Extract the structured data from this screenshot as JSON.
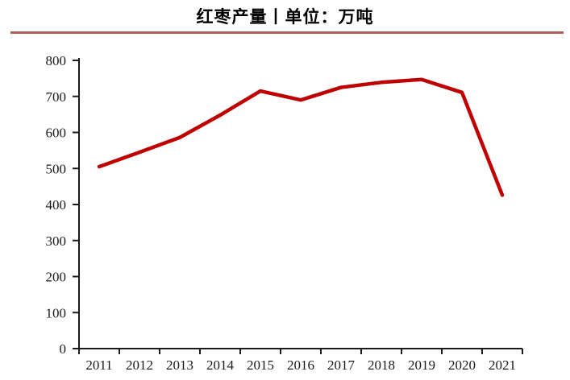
{
  "page": {
    "background": "#ffffff"
  },
  "header": {
    "title": "红枣产量丨单位：万吨",
    "separator_color": "#b25b5b"
  },
  "chart_data": {
    "type": "line",
    "title": "红枣产量丨单位：万吨",
    "unit": "万吨",
    "categories": [
      "2011",
      "2012",
      "2013",
      "2014",
      "2015",
      "2016",
      "2017",
      "2018",
      "2019",
      "2020",
      "2021"
    ],
    "series": [
      {
        "name": "红枣产量",
        "color": "#c00000",
        "values": [
          505,
          545,
          586,
          648,
          715,
          690,
          725,
          739,
          747,
          711,
          426
        ]
      }
    ],
    "xlabel": "",
    "ylabel": "",
    "ylim": [
      0,
      800
    ],
    "yticks": [
      0,
      100,
      200,
      300,
      400,
      500,
      600,
      700,
      800
    ],
    "grid": false,
    "legend_position": "none",
    "axis_color": "#1a1a1a"
  }
}
